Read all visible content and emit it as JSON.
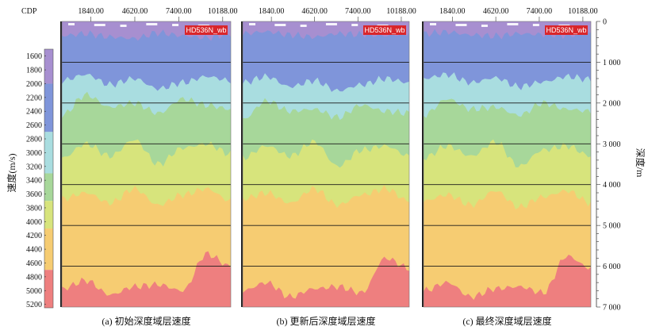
{
  "figure": {
    "cdp_label": "CDP",
    "depth_label": "深度/m",
    "velocity_label": "速度(m/s)"
  },
  "chart_data": {
    "type": "heatmap",
    "x_axis": {
      "label": "CDP",
      "ticks": [
        "1840.00",
        "4620.00",
        "7400.00",
        "10188.00"
      ],
      "tick_values": [
        1840,
        4620,
        7400,
        10188
      ]
    },
    "depth_axis": {
      "label": "深度/m",
      "ticks": [
        "0",
        "1 000",
        "2 000",
        "3 000",
        "4 000",
        "5 000",
        "6 000",
        "7 000"
      ],
      "tick_values": [
        0,
        1000,
        2000,
        3000,
        4000,
        5000,
        6000,
        7000
      ],
      "ylim": [
        0,
        7000
      ]
    },
    "colorbar": {
      "label": "速度(m/s)",
      "ticks": [
        "1600",
        "1800",
        "2000",
        "2200",
        "2400",
        "2600",
        "2800",
        "3000",
        "3200",
        "3400",
        "3600",
        "3800",
        "4000",
        "4200",
        "4400",
        "4600",
        "4800",
        "5000",
        "5200"
      ],
      "tick_values": [
        1600,
        1800,
        2000,
        2200,
        2400,
        2600,
        2800,
        3000,
        3200,
        3400,
        3600,
        3800,
        4000,
        4200,
        4400,
        4600,
        4800,
        5000,
        5200
      ],
      "range": [
        1500,
        5250
      ],
      "bands": [
        {
          "from": 1500,
          "to": 2000,
          "color": "#a78fd0"
        },
        {
          "from": 2000,
          "to": 2700,
          "color": "#7f95da"
        },
        {
          "from": 2700,
          "to": 3300,
          "color": "#a9dde0"
        },
        {
          "from": 3300,
          "to": 3700,
          "color": "#a7d79a"
        },
        {
          "from": 3700,
          "to": 4100,
          "color": "#d7e47c"
        },
        {
          "from": 4100,
          "to": 4700,
          "color": "#f6cc72"
        },
        {
          "from": 4700,
          "to": 5250,
          "color": "#ee7f7f"
        }
      ]
    },
    "horizon_depths": [
      1000,
      2000,
      3000,
      4000,
      5000,
      6000
    ],
    "panels": [
      {
        "caption": "(a) 初始深度域层速度",
        "badge": "HD536N_wb",
        "band_boundaries_m": [
          [
            350,
            300,
            380,
            420,
            280,
            350,
            400,
            300
          ],
          [
            1450,
            1300,
            1550,
            1400,
            1650,
            1500,
            1350,
            1450
          ],
          [
            2300,
            1800,
            2100,
            2000,
            2250,
            1900,
            2050,
            2150
          ],
          [
            3350,
            3000,
            3300,
            2900,
            3500,
            3100,
            3000,
            3250
          ],
          [
            4350,
            4200,
            4450,
            4100,
            4500,
            4250,
            4100,
            4400
          ],
          [
            6550,
            6350,
            6700,
            6500,
            6450,
            6600,
            5700,
            6000
          ]
        ]
      },
      {
        "caption": "(b) 更新后深度域层速度",
        "badge": "HD536N_wb",
        "band_boundaries_m": [
          [
            300,
            250,
            330,
            380,
            300,
            320,
            350,
            280
          ],
          [
            1500,
            1350,
            1600,
            1450,
            1700,
            1550,
            1400,
            1500
          ],
          [
            2400,
            1950,
            2200,
            2150,
            2350,
            2050,
            2200,
            2250
          ],
          [
            3350,
            3050,
            3300,
            2950,
            3550,
            3150,
            3050,
            3300
          ],
          [
            4350,
            4200,
            4450,
            4100,
            4500,
            4250,
            4100,
            4400
          ],
          [
            6600,
            6400,
            6750,
            6550,
            6500,
            6650,
            5800,
            6050
          ]
        ]
      },
      {
        "caption": "(c) 最终深度域层速度",
        "badge": "HD536N_wb",
        "band_boundaries_m": [
          [
            300,
            260,
            330,
            360,
            300,
            320,
            340,
            300
          ],
          [
            1400,
            1300,
            1500,
            1380,
            1600,
            1480,
            1350,
            1420
          ],
          [
            2300,
            1900,
            2150,
            2100,
            2300,
            2000,
            2150,
            2200
          ],
          [
            3350,
            3050,
            3300,
            2950,
            3550,
            3150,
            3050,
            3300
          ],
          [
            4400,
            4250,
            4500,
            4150,
            4550,
            4300,
            4150,
            4450
          ],
          [
            6600,
            6400,
            6750,
            6550,
            6500,
            6650,
            5750,
            6050
          ]
        ]
      }
    ]
  }
}
